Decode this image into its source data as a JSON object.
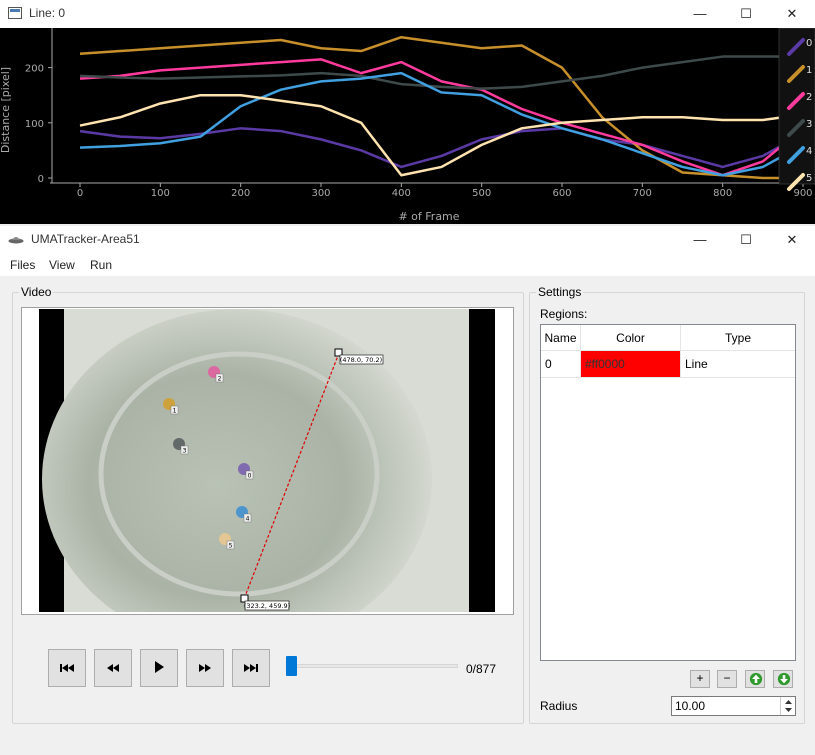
{
  "plot_window": {
    "title": "Line: 0",
    "controls": {
      "minimize": "—",
      "maximize": "☐",
      "close": "✕"
    }
  },
  "chart_data": {
    "type": "line",
    "xlabel": "# of Frame",
    "ylabel": "Distance [pixel]",
    "xlim": [
      -20,
      900
    ],
    "ylim": [
      -10,
      270
    ],
    "x_ticks": [
      0,
      100,
      200,
      300,
      400,
      500,
      600,
      700,
      800,
      900
    ],
    "y_ticks": [
      0,
      100,
      200
    ],
    "grid": false,
    "legend_position": "right",
    "x": [
      0,
      50,
      100,
      150,
      200,
      250,
      300,
      350,
      400,
      450,
      500,
      550,
      600,
      650,
      700,
      750,
      800,
      850,
      875
    ],
    "series": [
      {
        "name": "0",
        "color": "#5b3aa5",
        "values": [
          85,
          75,
          72,
          80,
          90,
          85,
          70,
          50,
          20,
          40,
          70,
          85,
          90,
          70,
          60,
          40,
          20,
          40,
          60
        ]
      },
      {
        "name": "1",
        "color": "#c8902a",
        "values": [
          225,
          230,
          235,
          240,
          245,
          250,
          235,
          230,
          255,
          245,
          235,
          240,
          200,
          110,
          50,
          10,
          5,
          0,
          0
        ]
      },
      {
        "name": "2",
        "color": "#ff3c9e",
        "values": [
          180,
          185,
          195,
          200,
          205,
          210,
          215,
          190,
          210,
          175,
          160,
          125,
          100,
          80,
          60,
          30,
          5,
          30,
          60
        ]
      },
      {
        "name": "3",
        "color": "#3e4a4a",
        "values": [
          185,
          182,
          180,
          182,
          184,
          186,
          190,
          185,
          170,
          165,
          162,
          165,
          175,
          185,
          200,
          210,
          220,
          220,
          220
        ]
      },
      {
        "name": "4",
        "color": "#40a0e0",
        "values": [
          55,
          58,
          63,
          75,
          130,
          160,
          175,
          180,
          190,
          155,
          150,
          115,
          90,
          70,
          45,
          20,
          5,
          20,
          40
        ]
      },
      {
        "name": "5",
        "color": "#ffe4b0",
        "values": [
          95,
          110,
          135,
          150,
          150,
          140,
          130,
          100,
          5,
          20,
          60,
          90,
          100,
          105,
          110,
          110,
          105,
          105,
          110
        ]
      }
    ]
  },
  "main_window": {
    "title": "UMATracker-Area51",
    "controls": {
      "minimize": "—",
      "maximize": "☐",
      "close": "✕"
    },
    "menu": [
      "Files",
      "View",
      "Run"
    ]
  },
  "video": {
    "group_title": "Video",
    "point_a_label": "(478.0, 70.2)",
    "point_b_label": "(323.2, 459.9)",
    "fish": [
      {
        "label": "0",
        "color": "#7a60b0"
      },
      {
        "label": "1",
        "color": "#d0a030"
      },
      {
        "label": "2",
        "color": "#e060a0"
      },
      {
        "label": "3",
        "color": "#5a6060"
      },
      {
        "label": "4",
        "color": "#4090d0"
      },
      {
        "label": "5",
        "color": "#e8c890"
      }
    ]
  },
  "playback": {
    "buttons": [
      "skip-to-start",
      "rewind",
      "play",
      "fast-forward",
      "skip-to-end"
    ],
    "frame_counter": "0/877",
    "position": 0
  },
  "settings": {
    "group_title": "Settings",
    "regions_label": "Regions:",
    "columns": [
      "Name",
      "Color",
      "Type"
    ],
    "rows": [
      {
        "name": "0",
        "color_text": "#ff0000",
        "color": "#ff0000",
        "type": "Line"
      }
    ],
    "buttons": {
      "add": "+",
      "remove": "−"
    },
    "radius_label": "Radius",
    "radius_value": "10.00"
  }
}
